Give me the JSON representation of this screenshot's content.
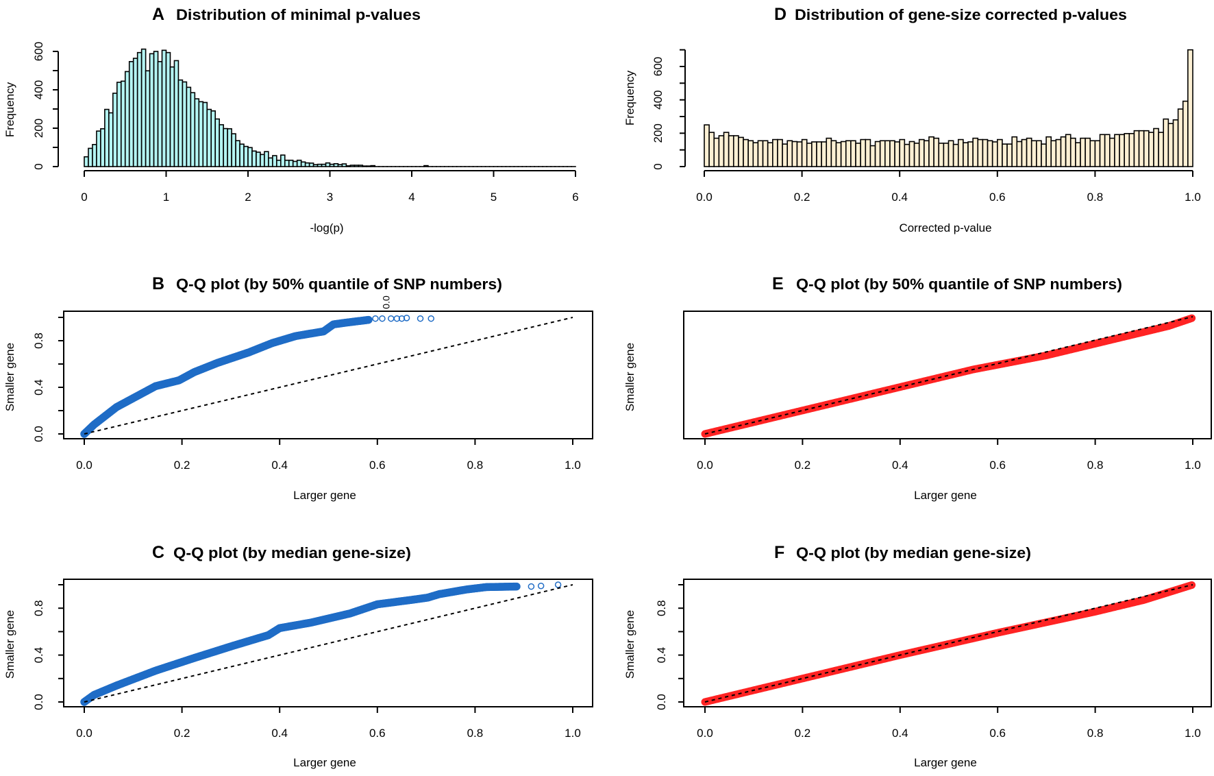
{
  "colors": {
    "hist_a": "#b4f4f2",
    "hist_d": "#fdf0d4",
    "qq_blue": "#1f6cc6",
    "qq_red": "#ff2424",
    "reference": "#000000"
  },
  "chart_data": [
    {
      "id": "A",
      "type": "bar",
      "letter": "A",
      "title": "Distribution of minimal p-values",
      "xlabel": "-log(p)",
      "ylabel": "Frequency",
      "xlim": [
        0,
        6
      ],
      "ylim": [
        0,
        600
      ],
      "bin_width": 0.05,
      "xticks": [
        "0",
        "1",
        "2",
        "3",
        "4",
        "5",
        "6"
      ],
      "yticks": [
        "0",
        "200",
        "400",
        "600"
      ],
      "values": [
        51,
        95,
        115,
        185,
        197,
        298,
        280,
        382,
        439,
        445,
        495,
        547,
        564,
        594,
        612,
        499,
        588,
        600,
        547,
        606,
        594,
        519,
        552,
        451,
        441,
        413,
        385,
        353,
        338,
        334,
        298,
        290,
        248,
        218,
        198,
        197,
        171,
        135,
        117,
        105,
        99,
        81,
        75,
        63,
        78,
        45,
        57,
        33,
        60,
        33,
        33,
        27,
        33,
        24,
        19,
        18,
        10,
        12,
        12,
        19,
        12,
        15,
        10,
        14,
        4,
        7,
        7,
        7,
        3,
        3,
        5,
        0,
        0,
        0,
        0,
        0,
        0,
        0,
        0,
        0,
        0,
        0,
        0,
        5,
        0,
        0,
        0,
        0,
        0,
        0,
        0,
        0,
        0,
        0,
        0,
        0,
        0,
        0,
        0,
        0,
        0,
        0,
        0,
        0,
        0,
        0,
        0,
        0,
        0,
        0,
        0,
        0,
        0,
        0,
        0,
        0,
        0,
        0,
        0,
        0
      ]
    },
    {
      "id": "D",
      "type": "bar",
      "letter": "D",
      "title": "Distribution of gene-size corrected p-values",
      "xlabel": "Corrected p-value",
      "ylabel": "Frequency",
      "xlim": [
        0,
        1
      ],
      "ylim": [
        0,
        700
      ],
      "bin_width": 0.01,
      "xticks": [
        "0.0",
        "0.2",
        "0.4",
        "0.6",
        "0.8",
        "1.0"
      ],
      "yticks": [
        "0",
        "200",
        "400",
        "600"
      ],
      "values": [
        250,
        205,
        170,
        185,
        205,
        185,
        185,
        175,
        162,
        155,
        143,
        155,
        155,
        143,
        162,
        162,
        135,
        155,
        150,
        148,
        162,
        140,
        148,
        148,
        148,
        170,
        155,
        143,
        150,
        155,
        155,
        140,
        162,
        162,
        125,
        150,
        155,
        155,
        155,
        148,
        162,
        133,
        150,
        140,
        162,
        155,
        178,
        170,
        140,
        140,
        155,
        133,
        162,
        143,
        148,
        170,
        162,
        162,
        155,
        148,
        162,
        135,
        135,
        178,
        150,
        162,
        170,
        155,
        155,
        135,
        178,
        155,
        162,
        178,
        192,
        170,
        143,
        170,
        170,
        155,
        155,
        192,
        192,
        170,
        192,
        192,
        198,
        198,
        215,
        215,
        215,
        205,
        228,
        205,
        285,
        258,
        280,
        345,
        392,
        700
      ]
    },
    {
      "id": "B",
      "type": "scatter",
      "letter": "B",
      "title": "Q-Q plot (by 50% quantile of SNP numbers)",
      "stray_label": "0.0",
      "xlabel": "Larger gene",
      "ylabel": "Smaller gene",
      "xlim": [
        0,
        1
      ],
      "ylim": [
        0,
        1
      ],
      "xticks": [
        "0.0",
        "0.2",
        "0.4",
        "0.6",
        "0.8",
        "1.0"
      ],
      "yticks": [
        "0.0",
        "0.4",
        "0.8"
      ],
      "curve": [
        [
          0,
          0
        ],
        [
          0.02,
          0.08
        ],
        [
          0.066,
          0.23
        ],
        [
          0.146,
          0.41
        ],
        [
          0.194,
          0.46
        ],
        [
          0.225,
          0.53
        ],
        [
          0.273,
          0.61
        ],
        [
          0.337,
          0.7
        ],
        [
          0.385,
          0.78
        ],
        [
          0.433,
          0.84
        ],
        [
          0.49,
          0.88
        ],
        [
          0.51,
          0.94
        ],
        [
          0.536,
          0.955
        ],
        [
          0.584,
          0.98
        ]
      ],
      "outliers": [
        [
          0.596,
          0.99
        ],
        [
          0.61,
          0.99
        ],
        [
          0.628,
          0.99
        ],
        [
          0.64,
          0.99
        ],
        [
          0.65,
          0.99
        ],
        [
          0.66,
          0.995
        ],
        [
          0.688,
          0.99
        ],
        [
          0.71,
          0.99
        ]
      ],
      "reference": [
        [
          0,
          0
        ],
        [
          1,
          1
        ]
      ],
      "color": "blue"
    },
    {
      "id": "E",
      "type": "scatter",
      "letter": "E",
      "title": "Q-Q plot (by 50% quantile of SNP numbers)",
      "xlabel": "Larger gene",
      "ylabel": "Smaller gene",
      "xlim": [
        0,
        1
      ],
      "ylim": [
        0,
        1
      ],
      "xticks": [
        "0.0",
        "0.2",
        "0.4",
        "0.6",
        "0.8",
        "1.0"
      ],
      "yticks": [],
      "curve": [
        [
          0,
          0
        ],
        [
          0.2,
          0.2
        ],
        [
          0.4,
          0.4
        ],
        [
          0.55,
          0.55
        ],
        [
          0.6,
          0.59
        ],
        [
          0.7,
          0.67
        ],
        [
          0.8,
          0.77
        ],
        [
          0.9,
          0.87
        ],
        [
          0.95,
          0.92
        ],
        [
          1,
          0.99
        ]
      ],
      "outliers": [],
      "reference": [
        [
          0,
          0
        ],
        [
          1,
          1
        ]
      ],
      "color": "red"
    },
    {
      "id": "C",
      "type": "scatter",
      "letter": "C",
      "title": "Q-Q plot (by median gene-size)",
      "xlabel": "Larger gene",
      "ylabel": "Smaller gene",
      "xlim": [
        0,
        1
      ],
      "ylim": [
        0,
        1
      ],
      "xticks": [
        "0.0",
        "0.2",
        "0.4",
        "0.6",
        "0.8",
        "1.0"
      ],
      "yticks": [
        "0.0",
        "0.4",
        "0.8"
      ],
      "curve": [
        [
          0,
          0
        ],
        [
          0.02,
          0.06
        ],
        [
          0.066,
          0.14
        ],
        [
          0.146,
          0.267
        ],
        [
          0.225,
          0.375
        ],
        [
          0.305,
          0.48
        ],
        [
          0.377,
          0.57
        ],
        [
          0.4,
          0.63
        ],
        [
          0.464,
          0.677
        ],
        [
          0.544,
          0.755
        ],
        [
          0.6,
          0.833
        ],
        [
          0.672,
          0.872
        ],
        [
          0.703,
          0.89
        ],
        [
          0.727,
          0.92
        ],
        [
          0.783,
          0.96
        ],
        [
          0.823,
          0.98
        ],
        [
          0.887,
          0.985
        ]
      ],
      "outliers": [
        [
          0.915,
          0.985
        ],
        [
          0.935,
          0.99
        ],
        [
          0.97,
          1.0
        ]
      ],
      "reference": [
        [
          0,
          0
        ],
        [
          1,
          1
        ]
      ],
      "color": "blue"
    },
    {
      "id": "F",
      "type": "scatter",
      "letter": "F",
      "title": "Q-Q plot (by median gene-size)",
      "xlabel": "Larger gene",
      "ylabel": "Smaller gene",
      "xlim": [
        0,
        1
      ],
      "ylim": [
        0,
        1
      ],
      "xticks": [
        "0.0",
        "0.2",
        "0.4",
        "0.6",
        "0.8",
        "1.0"
      ],
      "yticks": [
        "0.0",
        "0.4",
        "0.8"
      ],
      "curve": [
        [
          0,
          0
        ],
        [
          0.2,
          0.2
        ],
        [
          0.4,
          0.4
        ],
        [
          0.6,
          0.59
        ],
        [
          0.7,
          0.68
        ],
        [
          0.8,
          0.77
        ],
        [
          0.9,
          0.87
        ],
        [
          1,
          1
        ]
      ],
      "outliers": [],
      "reference": [
        [
          0,
          0
        ],
        [
          1,
          1
        ]
      ],
      "color": "red"
    }
  ]
}
